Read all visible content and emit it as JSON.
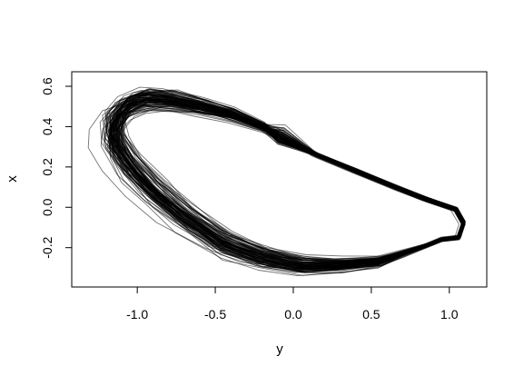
{
  "chart_data": {
    "type": "line",
    "title": "",
    "xlabel": "y",
    "ylabel": "x",
    "xlim": [
      -1.42,
      1.24
    ],
    "ylim": [
      -0.395,
      0.672
    ],
    "x_ticks": [
      -1.0,
      -0.5,
      0.0,
      0.5,
      1.0
    ],
    "y_ticks": [
      -0.2,
      0.0,
      0.2,
      0.4,
      0.6
    ],
    "x_tick_labels": [
      "-1.0",
      "-0.5",
      "0.0",
      "0.5",
      "1.0"
    ],
    "y_tick_labels": [
      "-0.2",
      "0.0",
      "0.2",
      "0.4",
      "0.6"
    ],
    "grid": false,
    "legend": "none",
    "line_color": "#000000",
    "series_count": 100,
    "series_description": "Overlaid closed trajectories (limit-cycle-like loops) sharing one mean path with increasing spread around the left lobe",
    "mean_path": [
      {
        "x": -0.08,
        "y": 0.35
      },
      {
        "x": 0.15,
        "y": 0.26
      },
      {
        "x": 0.4,
        "y": 0.18
      },
      {
        "x": 0.65,
        "y": 0.1
      },
      {
        "x": 0.85,
        "y": 0.04
      },
      {
        "x": 1.04,
        "y": -0.01
      },
      {
        "x": 1.09,
        "y": -0.08
      },
      {
        "x": 1.06,
        "y": -0.15
      },
      {
        "x": 0.95,
        "y": -0.16
      },
      {
        "x": 0.85,
        "y": -0.19
      },
      {
        "x": 0.7,
        "y": -0.23
      },
      {
        "x": 0.55,
        "y": -0.27
      },
      {
        "x": 0.3,
        "y": -0.29
      },
      {
        "x": 0.05,
        "y": -0.29
      },
      {
        "x": -0.2,
        "y": -0.25
      },
      {
        "x": -0.45,
        "y": -0.18
      },
      {
        "x": -0.7,
        "y": -0.05
      },
      {
        "x": -0.9,
        "y": 0.08
      },
      {
        "x": -1.05,
        "y": 0.2
      },
      {
        "x": -1.15,
        "y": 0.32
      },
      {
        "x": -1.15,
        "y": 0.42
      },
      {
        "x": -1.07,
        "y": 0.5
      },
      {
        "x": -0.95,
        "y": 0.535
      },
      {
        "x": -0.8,
        "y": 0.53
      },
      {
        "x": -0.6,
        "y": 0.5
      },
      {
        "x": -0.4,
        "y": 0.46
      },
      {
        "x": -0.2,
        "y": 0.4
      },
      {
        "x": -0.08,
        "y": 0.35
      }
    ]
  }
}
